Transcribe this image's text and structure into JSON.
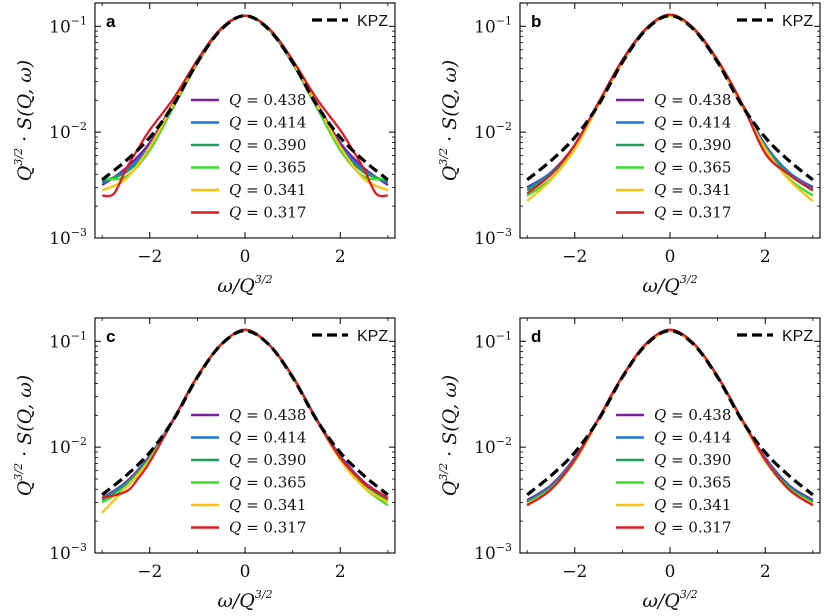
{
  "chart_data": [
    {
      "type": "line",
      "panel": "a",
      "xlabel": "ω/Q^3/2",
      "ylabel": "Q^3/2 · S(Q, ω)",
      "xlim": [
        -3.15,
        3.15
      ],
      "ylim_log10": [
        -3,
        -0.78
      ],
      "xticks": [
        "−2",
        "0",
        "2"
      ],
      "ytick_labels": [
        "10-3",
        "10-2",
        "10-1"
      ],
      "legend_position": "center",
      "series": [
        {
          "name": "Q = 0.438",
          "color": "#7b1fa2",
          "x": [
            -3,
            -2.5,
            -2,
            -1.5,
            -1,
            -0.5,
            0,
            0.5,
            1,
            1.5,
            2,
            2.5,
            3
          ],
          "log10_y": [
            -2.5,
            -2.34,
            -2.1,
            -1.72,
            -1.32,
            -1.02,
            -0.9,
            -1.02,
            -1.32,
            -1.72,
            -2.1,
            -2.34,
            -2.5
          ]
        },
        {
          "name": "Q = 0.414",
          "color": "#1f77d4",
          "x": [
            -3,
            -2.5,
            -2,
            -1.5,
            -1,
            -0.5,
            0,
            0.5,
            1,
            1.5,
            2,
            2.5,
            3
          ],
          "log10_y": [
            -2.48,
            -2.36,
            -2.13,
            -1.74,
            -1.33,
            -1.02,
            -0.9,
            -1.02,
            -1.33,
            -1.74,
            -2.13,
            -2.36,
            -2.48
          ]
        },
        {
          "name": "Q = 0.390",
          "color": "#1e9e5a",
          "x": [
            -3,
            -2.5,
            -2,
            -1.5,
            -1,
            -0.5,
            0,
            0.5,
            1,
            1.5,
            2,
            2.5,
            3
          ],
          "log10_y": [
            -2.46,
            -2.38,
            -2.16,
            -1.76,
            -1.35,
            -1.03,
            -0.9,
            -1.03,
            -1.35,
            -1.76,
            -2.16,
            -2.38,
            -2.46
          ]
        },
        {
          "name": "Q = 0.365",
          "color": "#36e02c",
          "x": [
            -3,
            -2.5,
            -2,
            -1.5,
            -1,
            -0.5,
            0,
            0.5,
            1,
            1.5,
            2,
            2.5,
            3
          ],
          "log10_y": [
            -2.44,
            -2.42,
            -2.17,
            -1.75,
            -1.34,
            -1.02,
            -0.9,
            -1.02,
            -1.34,
            -1.75,
            -2.17,
            -2.42,
            -2.44
          ]
        },
        {
          "name": "Q = 0.341",
          "color": "#ffc20e",
          "x": [
            -3,
            -2.5,
            -2,
            -1.5,
            -1,
            -0.5,
            0,
            0.5,
            1,
            1.5,
            2,
            2.5,
            3
          ],
          "log10_y": [
            -2.55,
            -2.44,
            -2.14,
            -1.73,
            -1.33,
            -1.02,
            -0.9,
            -1.02,
            -1.33,
            -1.73,
            -2.14,
            -2.44,
            -2.55
          ]
        },
        {
          "name": "Q = 0.317",
          "color": "#e01b24",
          "x": [
            -3,
            -2.75,
            -2.5,
            -2.25,
            -2,
            -1.5,
            -1,
            -0.5,
            0,
            0.5,
            1,
            1.5,
            2,
            2.25,
            2.5,
            2.75,
            3
          ],
          "log10_y": [
            -2.6,
            -2.58,
            -2.35,
            -2.16,
            -1.98,
            -1.68,
            -1.32,
            -1.02,
            -0.9,
            -1.02,
            -1.32,
            -1.68,
            -1.98,
            -2.16,
            -2.35,
            -2.58,
            -2.6
          ]
        },
        {
          "name": "KPZ",
          "color": "#000000",
          "dashed": true,
          "x": [
            -3,
            -2.5,
            -2,
            -1.5,
            -1,
            -0.5,
            0,
            0.5,
            1,
            1.5,
            2,
            2.5,
            3
          ],
          "log10_y": [
            -2.45,
            -2.27,
            -2.05,
            -1.74,
            -1.34,
            -1.03,
            -0.9,
            -1.03,
            -1.34,
            -1.74,
            -2.05,
            -2.27,
            -2.45
          ]
        }
      ]
    },
    {
      "type": "line",
      "panel": "b",
      "xlabel": "ω/Q^3/2",
      "ylabel": "Q^3/2 · S(Q, ω)",
      "xlim": [
        -3.15,
        3.15
      ],
      "ylim_log10": [
        -3,
        -0.78
      ],
      "xticks": [
        "−2",
        "0",
        "2"
      ],
      "ytick_labels": [
        "10-3",
        "10-2",
        "10-1"
      ],
      "legend_position": "center",
      "series": [
        {
          "name": "Q = 0.438",
          "color": "#7b1fa2",
          "x": [
            -3,
            -2.5,
            -2,
            -1.5,
            -1,
            -0.5,
            0,
            0.5,
            1,
            1.5,
            2,
            2.5,
            3
          ],
          "log10_y": [
            -2.52,
            -2.38,
            -2.12,
            -1.72,
            -1.32,
            -1.02,
            -0.9,
            -1.02,
            -1.32,
            -1.72,
            -2.12,
            -2.38,
            -2.52
          ]
        },
        {
          "name": "Q = 0.414",
          "color": "#1f77d4",
          "x": [
            -3,
            -2.5,
            -2,
            -1.5,
            -1,
            -0.5,
            0,
            0.5,
            1,
            1.5,
            2,
            2.5,
            3
          ],
          "log10_y": [
            -2.53,
            -2.38,
            -2.13,
            -1.73,
            -1.33,
            -1.02,
            -0.9,
            -1.02,
            -1.33,
            -1.73,
            -2.13,
            -2.38,
            -2.53
          ]
        },
        {
          "name": "Q = 0.390",
          "color": "#1e9e5a",
          "x": [
            -3,
            -2.5,
            -2,
            -1.5,
            -1,
            -0.5,
            0,
            0.5,
            1,
            1.5,
            2,
            2.5,
            3
          ],
          "log10_y": [
            -2.55,
            -2.4,
            -2.15,
            -1.74,
            -1.34,
            -1.03,
            -0.9,
            -1.03,
            -1.34,
            -1.74,
            -2.15,
            -2.4,
            -2.55
          ]
        },
        {
          "name": "Q = 0.365",
          "color": "#36e02c",
          "x": [
            -3,
            -2.5,
            -2,
            -1.5,
            -1,
            -0.5,
            0,
            0.5,
            1,
            1.5,
            2,
            2.5,
            3
          ],
          "log10_y": [
            -2.6,
            -2.44,
            -2.15,
            -1.74,
            -1.34,
            -1.02,
            -0.9,
            -1.02,
            -1.34,
            -1.74,
            -2.15,
            -2.44,
            -2.6
          ]
        },
        {
          "name": "Q = 0.341",
          "color": "#ffc20e",
          "x": [
            -3,
            -2.5,
            -2,
            -1.5,
            -1,
            -0.5,
            0,
            0.5,
            1,
            1.5,
            2,
            2.5,
            3
          ],
          "log10_y": [
            -2.65,
            -2.45,
            -2.16,
            -1.74,
            -1.33,
            -1.02,
            -0.9,
            -1.02,
            -1.33,
            -1.74,
            -2.16,
            -2.45,
            -2.65
          ]
        },
        {
          "name": "Q = 0.317",
          "color": "#e01b24",
          "x": [
            -3,
            -2.5,
            -2,
            -1.5,
            -1,
            -0.5,
            0,
            0.5,
            1,
            1.5,
            2,
            2.5,
            3
          ],
          "log10_y": [
            -2.58,
            -2.4,
            -2.12,
            -1.72,
            -1.32,
            -1.02,
            -0.89,
            -1.02,
            -1.32,
            -1.72,
            -2.2,
            -2.4,
            -2.55
          ]
        },
        {
          "name": "KPZ",
          "color": "#000000",
          "dashed": true,
          "x": [
            -3,
            -2.5,
            -2,
            -1.5,
            -1,
            -0.5,
            0,
            0.5,
            1,
            1.5,
            2,
            2.5,
            3
          ],
          "log10_y": [
            -2.45,
            -2.27,
            -2.05,
            -1.74,
            -1.34,
            -1.03,
            -0.9,
            -1.03,
            -1.34,
            -1.74,
            -2.05,
            -2.27,
            -2.45
          ]
        }
      ]
    },
    {
      "type": "line",
      "panel": "c",
      "xlabel": "ω/Q^3/2",
      "ylabel": "Q^3/2 · S(Q, ω)",
      "xlim": [
        -3.15,
        3.15
      ],
      "ylim_log10": [
        -3,
        -0.78
      ],
      "xticks": [
        "−2",
        "0",
        "2"
      ],
      "ytick_labels": [
        "10-3",
        "10-2",
        "10-1"
      ],
      "legend_position": "center",
      "series": [
        {
          "name": "Q = 0.438",
          "color": "#7b1fa2",
          "x": [
            -3,
            -2.5,
            -2,
            -1.5,
            -1,
            -0.5,
            0,
            0.5,
            1,
            1.5,
            2,
            2.5,
            3
          ],
          "log10_y": [
            -2.48,
            -2.33,
            -2.08,
            -1.73,
            -1.33,
            -1.03,
            -0.9,
            -1.03,
            -1.33,
            -1.73,
            -2.08,
            -2.33,
            -2.48
          ]
        },
        {
          "name": "Q = 0.414",
          "color": "#1f77d4",
          "x": [
            -3,
            -2.5,
            -2,
            -1.5,
            -1,
            -0.5,
            0,
            0.5,
            1,
            1.5,
            2,
            2.5,
            3
          ],
          "log10_y": [
            -2.49,
            -2.34,
            -2.09,
            -1.73,
            -1.33,
            -1.03,
            -0.9,
            -1.03,
            -1.33,
            -1.73,
            -2.09,
            -2.34,
            -2.49
          ]
        },
        {
          "name": "Q = 0.390",
          "color": "#1e9e5a",
          "x": [
            -3,
            -2.5,
            -2,
            -1.5,
            -1,
            -0.5,
            0,
            0.5,
            1,
            1.5,
            2,
            2.5,
            3
          ],
          "log10_y": [
            -2.5,
            -2.35,
            -2.1,
            -1.74,
            -1.34,
            -1.03,
            -0.9,
            -1.03,
            -1.34,
            -1.74,
            -2.1,
            -2.35,
            -2.5
          ]
        },
        {
          "name": "Q = 0.365",
          "color": "#36e02c",
          "x": [
            -3,
            -2.5,
            -2,
            -1.5,
            -1,
            -0.5,
            0,
            0.5,
            1,
            1.5,
            2,
            2.5,
            3
          ],
          "log10_y": [
            -2.52,
            -2.38,
            -2.11,
            -1.74,
            -1.34,
            -1.03,
            -0.9,
            -1.03,
            -1.34,
            -1.74,
            -2.11,
            -2.38,
            -2.55
          ]
        },
        {
          "name": "Q = 0.341",
          "color": "#ffc20e",
          "x": [
            -3,
            -2.5,
            -2,
            -1.5,
            -1,
            -0.5,
            0,
            0.5,
            1,
            1.5,
            2,
            2.5,
            3
          ],
          "log10_y": [
            -2.62,
            -2.38,
            -2.12,
            -1.74,
            -1.33,
            -1.03,
            -0.9,
            -1.03,
            -1.33,
            -1.74,
            -2.12,
            -2.38,
            -2.52
          ]
        },
        {
          "name": "Q = 0.317",
          "color": "#e01b24",
          "x": [
            -3,
            -2.5,
            -2.25,
            -2,
            -1.5,
            -1,
            -0.5,
            0,
            0.5,
            1,
            1.5,
            2,
            2.5,
            3
          ],
          "log10_y": [
            -2.48,
            -2.42,
            -2.3,
            -2.14,
            -1.74,
            -1.33,
            -1.03,
            -0.89,
            -1.03,
            -1.33,
            -1.74,
            -2.1,
            -2.34,
            -2.48
          ]
        },
        {
          "name": "KPZ",
          "color": "#000000",
          "dashed": true,
          "x": [
            -3,
            -2.5,
            -2,
            -1.5,
            -1,
            -0.5,
            0,
            0.5,
            1,
            1.5,
            2,
            2.5,
            3
          ],
          "log10_y": [
            -2.45,
            -2.27,
            -2.05,
            -1.74,
            -1.34,
            -1.03,
            -0.9,
            -1.03,
            -1.34,
            -1.74,
            -2.05,
            -2.27,
            -2.45
          ]
        }
      ]
    },
    {
      "type": "line",
      "panel": "d",
      "xlabel": "ω/Q^3/2",
      "ylabel": "Q^3/2 · S(Q, ω)",
      "xlim": [
        -3.15,
        3.15
      ],
      "ylim_log10": [
        -3,
        -0.78
      ],
      "xticks": [
        "−2",
        "0",
        "2"
      ],
      "ytick_labels": [
        "10-3",
        "10-2",
        "10-1"
      ],
      "legend_position": "center",
      "series": [
        {
          "name": "Q = 0.438",
          "color": "#7b1fa2",
          "x": [
            -3,
            -2.5,
            -2,
            -1.5,
            -1,
            -0.5,
            0,
            0.5,
            1,
            1.5,
            2,
            2.5,
            3
          ],
          "log10_y": [
            -2.5,
            -2.36,
            -2.1,
            -1.73,
            -1.33,
            -1.03,
            -0.9,
            -1.03,
            -1.33,
            -1.73,
            -2.1,
            -2.36,
            -2.5
          ]
        },
        {
          "name": "Q = 0.414",
          "color": "#1f77d4",
          "x": [
            -3,
            -2.5,
            -2,
            -1.5,
            -1,
            -0.5,
            0,
            0.5,
            1,
            1.5,
            2,
            2.5,
            3
          ],
          "log10_y": [
            -2.51,
            -2.37,
            -2.11,
            -1.73,
            -1.33,
            -1.03,
            -0.9,
            -1.03,
            -1.33,
            -1.73,
            -2.11,
            -2.37,
            -2.51
          ]
        },
        {
          "name": "Q = 0.390",
          "color": "#1e9e5a",
          "x": [
            -3,
            -2.5,
            -2,
            -1.5,
            -1,
            -0.5,
            0,
            0.5,
            1,
            1.5,
            2,
            2.5,
            3
          ],
          "log10_y": [
            -2.52,
            -2.38,
            -2.12,
            -1.74,
            -1.34,
            -1.03,
            -0.9,
            -1.03,
            -1.34,
            -1.74,
            -2.12,
            -2.38,
            -2.52
          ]
        },
        {
          "name": "Q = 0.365",
          "color": "#36e02c",
          "x": [
            -3,
            -2.5,
            -2,
            -1.5,
            -1,
            -0.5,
            0,
            0.5,
            1,
            1.5,
            2,
            2.5,
            3
          ],
          "log10_y": [
            -2.53,
            -2.39,
            -2.13,
            -1.74,
            -1.34,
            -1.03,
            -0.9,
            -1.03,
            -1.34,
            -1.74,
            -2.13,
            -2.39,
            -2.53
          ]
        },
        {
          "name": "Q = 0.341",
          "color": "#ffc20e",
          "x": [
            -3,
            -2.5,
            -2,
            -1.5,
            -1,
            -0.5,
            0,
            0.5,
            1,
            1.5,
            2,
            2.5,
            3
          ],
          "log10_y": [
            -2.54,
            -2.4,
            -2.13,
            -1.74,
            -1.33,
            -1.03,
            -0.9,
            -1.03,
            -1.33,
            -1.74,
            -2.13,
            -2.4,
            -2.54
          ]
        },
        {
          "name": "Q = 0.317",
          "color": "#e01b24",
          "x": [
            -3,
            -2.5,
            -2,
            -1.5,
            -1,
            -0.5,
            0,
            0.5,
            1,
            1.5,
            2,
            2.5,
            3
          ],
          "log10_y": [
            -2.55,
            -2.4,
            -2.12,
            -1.73,
            -1.33,
            -1.02,
            -0.89,
            -1.02,
            -1.33,
            -1.73,
            -2.12,
            -2.4,
            -2.55
          ]
        },
        {
          "name": "KPZ",
          "color": "#000000",
          "dashed": true,
          "x": [
            -3,
            -2.5,
            -2,
            -1.5,
            -1,
            -0.5,
            0,
            0.5,
            1,
            1.5,
            2,
            2.5,
            3
          ],
          "log10_y": [
            -2.45,
            -2.27,
            -2.05,
            -1.74,
            -1.34,
            -1.03,
            -0.9,
            -1.03,
            -1.34,
            -1.74,
            -2.05,
            -2.27,
            -2.45
          ]
        }
      ]
    }
  ]
}
